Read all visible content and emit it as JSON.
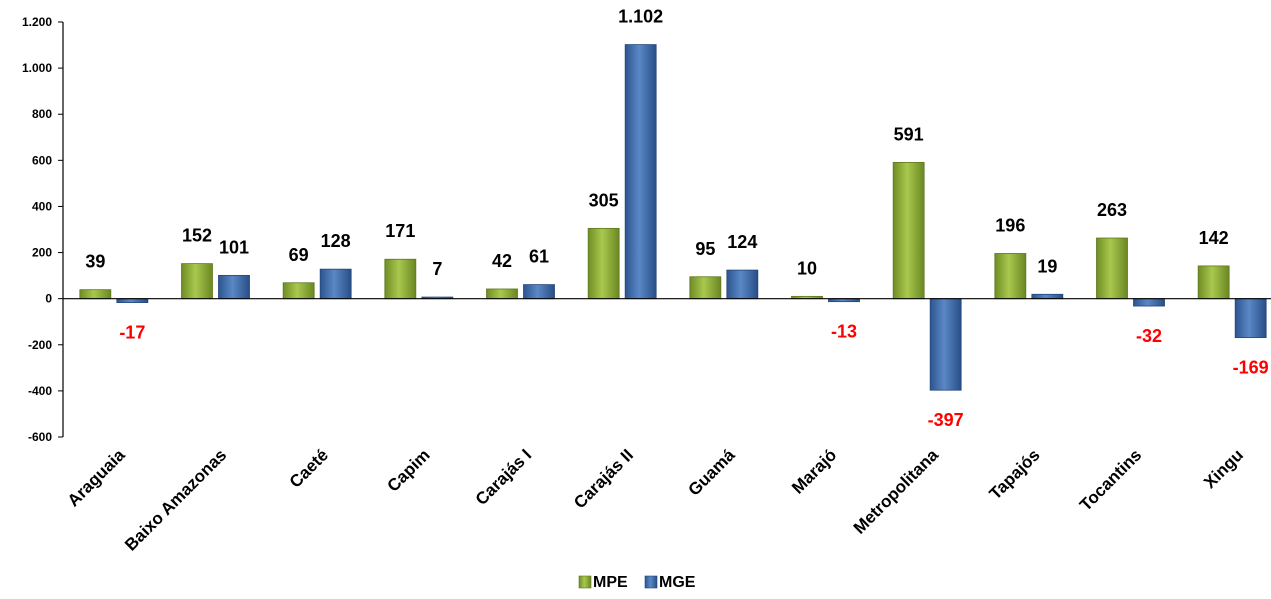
{
  "chart_data": {
    "type": "bar",
    "categories": [
      "Araguaia",
      "Baixo Amazonas",
      "Caeté",
      "Capim",
      "Carajás I",
      "Carajás II",
      "Guamá",
      "Marajó",
      "Metropolitana",
      "Tapajós",
      "Tocantins",
      "Xingu"
    ],
    "series": [
      {
        "name": "MPE",
        "values": [
          39,
          152,
          69,
          171,
          42,
          305,
          95,
          10,
          591,
          196,
          263,
          142
        ],
        "labels": [
          "39",
          "152",
          "69",
          "171",
          "42",
          "305",
          "95",
          "10",
          "591",
          "196",
          "263",
          "142"
        ],
        "color": "#8fb03a"
      },
      {
        "name": "MGE",
        "values": [
          -17,
          101,
          128,
          7,
          61,
          1102,
          124,
          -13,
          -397,
          19,
          -32,
          -169
        ],
        "labels": [
          "-17",
          "101",
          "128",
          "7",
          "61",
          "1.102",
          "124",
          "-13",
          "-397",
          "19",
          "-32",
          "-169"
        ],
        "color": "#3f6fad"
      }
    ],
    "ylim": [
      -600,
      1200
    ],
    "yticks": [
      -600,
      -400,
      -200,
      0,
      200,
      400,
      600,
      800,
      1000,
      1200
    ],
    "ytick_labels": [
      "-600",
      "-400",
      "-200",
      "0",
      "200",
      "400",
      "600",
      "800",
      "1.000",
      "1.200"
    ],
    "negative_label_color": "#ff0000",
    "positive_label_color": "#000000",
    "grid": false,
    "legend_position": "bottom"
  }
}
